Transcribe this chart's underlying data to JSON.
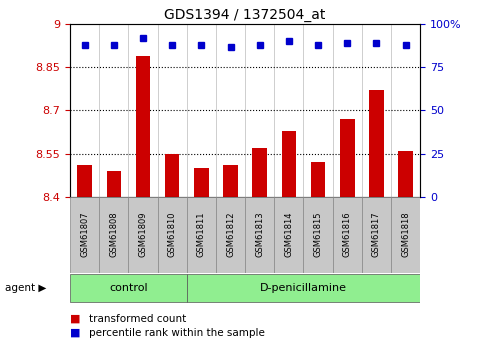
{
  "title": "GDS1394 / 1372504_at",
  "samples": [
    "GSM61807",
    "GSM61808",
    "GSM61809",
    "GSM61810",
    "GSM61811",
    "GSM61812",
    "GSM61813",
    "GSM61814",
    "GSM61815",
    "GSM61816",
    "GSM61817",
    "GSM61818"
  ],
  "bar_values": [
    8.51,
    8.49,
    8.89,
    8.55,
    8.5,
    8.51,
    8.57,
    8.63,
    8.52,
    8.67,
    8.77,
    8.56
  ],
  "percentile_values": [
    88,
    88,
    92,
    88,
    88,
    87,
    88,
    90,
    88,
    89,
    89,
    88
  ],
  "ylim_left": [
    8.4,
    9.0
  ],
  "ylim_right": [
    0,
    100
  ],
  "yticks_left": [
    8.4,
    8.55,
    8.7,
    8.85,
    9.0
  ],
  "ytick_labels_left": [
    "8.4",
    "8.55",
    "8.7",
    "8.85",
    "9"
  ],
  "yticks_right": [
    0,
    25,
    50,
    75,
    100
  ],
  "ytick_labels_right": [
    "0",
    "25",
    "50",
    "75",
    "100%"
  ],
  "hlines": [
    8.55,
    8.7,
    8.85
  ],
  "bar_color": "#CC0000",
  "dot_color": "#0000CC",
  "bar_width": 0.5,
  "ctrl_count": 4,
  "dpeni_count": 8,
  "group_row_color": "#90EE90",
  "tick_label_color_left": "#CC0000",
  "tick_label_color_right": "#0000CC",
  "legend_items": [
    {
      "label": "transformed count",
      "color": "#CC0000"
    },
    {
      "label": "percentile rank within the sample",
      "color": "#0000CC"
    }
  ],
  "xlabel_box_color": "#C8C8C8",
  "figsize": [
    4.83,
    3.45
  ],
  "dpi": 100
}
